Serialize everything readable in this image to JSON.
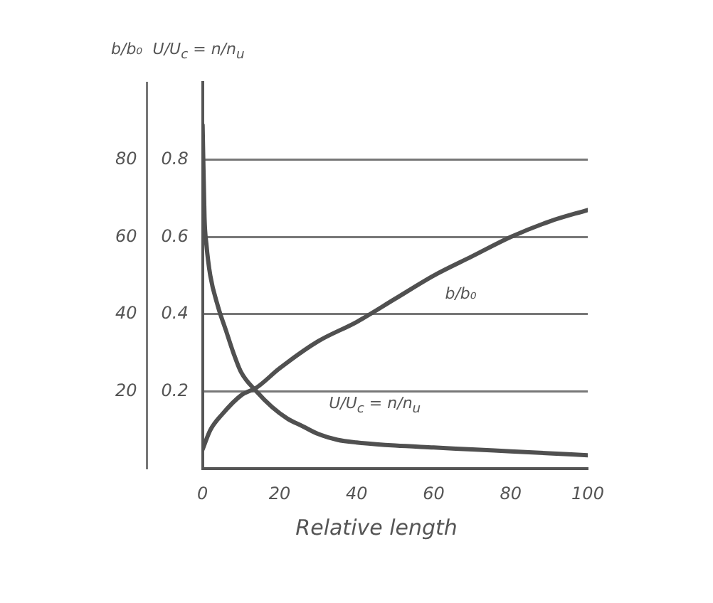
{
  "chart_data": {
    "type": "line",
    "xlabel": "Relative length",
    "ylabel": "b/b₀",
    "y2label": "U/U$_{c}$ = n/n$_{u}$",
    "xlim": [
      0,
      100
    ],
    "xticks": [
      0,
      20,
      40,
      60,
      80,
      100
    ],
    "ylim": [
      0,
      100
    ],
    "yticks": [
      20,
      40,
      60,
      80
    ],
    "y2lim": [
      0,
      1
    ],
    "y2ticks": [
      0.2,
      0.4,
      0.6,
      0.8
    ],
    "grid": "y",
    "legend": false,
    "marker": "none",
    "line_style": "solid",
    "series": [
      {
        "name": "b/b₀",
        "color": "#505050",
        "axis": "y",
        "x": [
          0,
          2,
          5,
          10,
          14,
          20,
          30,
          40,
          50,
          60,
          70,
          80,
          90,
          100
        ],
        "values": [
          5,
          10,
          14,
          19,
          21,
          26,
          33,
          38,
          44,
          50,
          55,
          60,
          64,
          67
        ]
      },
      {
        "name": "U/U$_{c}$ = n/n$_{u}$",
        "color": "#505050",
        "axis": "y2",
        "x": [
          0,
          0.5,
          1,
          2,
          4,
          6,
          8,
          10,
          14,
          18,
          22,
          26,
          30,
          35,
          40,
          50,
          60,
          70,
          80,
          90,
          100
        ],
        "values": [
          0.89,
          0.65,
          0.58,
          0.5,
          0.42,
          0.36,
          0.3,
          0.25,
          0.2,
          0.16,
          0.13,
          0.11,
          0.09,
          0.075,
          0.068,
          0.06,
          0.055,
          0.05,
          0.045,
          0.04,
          0.035
        ]
      }
    ]
  }
}
